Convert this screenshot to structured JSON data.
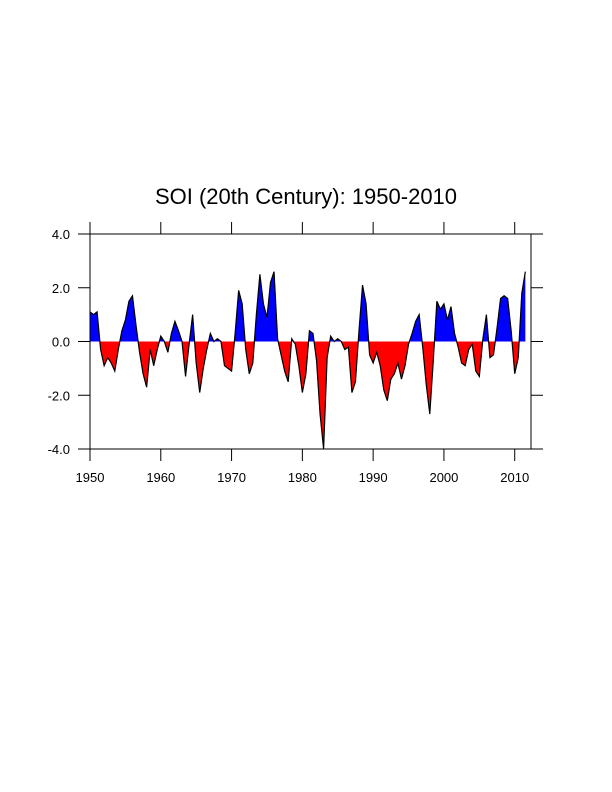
{
  "chart_data": {
    "type": "area",
    "title": "SOI (20th Century): 1950-2010",
    "x": [
      1950,
      1950.5,
      1951,
      1951.5,
      1952,
      1952.5,
      1953,
      1953.5,
      1954,
      1954.5,
      1955,
      1955.5,
      1956,
      1956.5,
      1957,
      1957.5,
      1958,
      1958.5,
      1959,
      1959.5,
      1960,
      1960.5,
      1961,
      1961.5,
      1962,
      1962.5,
      1963,
      1963.5,
      1964,
      1964.5,
      1965,
      1965.5,
      1966,
      1966.5,
      1967,
      1967.5,
      1968,
      1968.5,
      1969,
      1969.5,
      1970,
      1970.5,
      1971,
      1971.5,
      1972,
      1972.5,
      1973,
      1973.5,
      1974,
      1974.5,
      1975,
      1975.5,
      1976,
      1976.5,
      1977,
      1977.5,
      1978,
      1978.5,
      1979,
      1979.5,
      1980,
      1980.5,
      1981,
      1981.5,
      1982,
      1982.5,
      1983,
      1983.5,
      1984,
      1984.5,
      1985,
      1985.5,
      1986,
      1986.5,
      1987,
      1987.5,
      1988,
      1988.5,
      1989,
      1989.5,
      1990,
      1990.5,
      1991,
      1991.5,
      1992,
      1992.5,
      1993,
      1993.5,
      1994,
      1994.5,
      1995,
      1995.5,
      1996,
      1996.5,
      1997,
      1997.5,
      1998,
      1998.5,
      1999,
      1999.5,
      2000,
      2000.5,
      2001,
      2001.5,
      2002,
      2002.5,
      2003,
      2003.5,
      2004,
      2004.5,
      2005,
      2005.5,
      2006,
      2006.5,
      2007,
      2007.5,
      2008,
      2008.5,
      2009,
      2009.5,
      2010,
      2010.5,
      2011,
      2011.5
    ],
    "values": [
      1.1,
      1.0,
      1.1,
      -0.3,
      -0.9,
      -0.6,
      -0.8,
      -1.1,
      -0.3,
      0.4,
      0.8,
      1.5,
      1.7,
      0.6,
      -0.4,
      -1.2,
      -1.7,
      -0.3,
      -0.9,
      -0.3,
      0.2,
      0.0,
      -0.4,
      0.3,
      0.75,
      0.4,
      0.0,
      -1.3,
      -0.1,
      1.0,
      -0.8,
      -1.9,
      -1.0,
      -0.3,
      0.3,
      0.0,
      0.1,
      0.0,
      -0.9,
      -1.0,
      -1.1,
      0.3,
      1.9,
      1.4,
      -0.3,
      -1.2,
      -0.8,
      1.0,
      2.5,
      1.4,
      0.9,
      2.2,
      2.6,
      0.1,
      -0.5,
      -1.1,
      -1.5,
      0.1,
      -0.1,
      -0.9,
      -1.9,
      -1.2,
      0.4,
      0.3,
      -0.7,
      -2.7,
      -4.0,
      -0.6,
      0.2,
      0.0,
      0.1,
      0.0,
      -0.3,
      -0.2,
      -1.9,
      -1.5,
      0.4,
      2.1,
      1.4,
      -0.5,
      -0.8,
      -0.4,
      -0.9,
      -1.8,
      -2.2,
      -1.4,
      -1.2,
      -0.8,
      -1.4,
      -0.9,
      -0.1,
      0.3,
      0.75,
      1.0,
      -0.2,
      -1.6,
      -2.7,
      -0.7,
      1.5,
      1.2,
      1.4,
      0.8,
      1.3,
      0.3,
      -0.2,
      -0.8,
      -0.9,
      -0.3,
      -0.1,
      -1.1,
      -1.3,
      0.1,
      1.0,
      -0.6,
      -0.5,
      0.5,
      1.6,
      1.7,
      1.6,
      0.4,
      -1.2,
      -0.6,
      1.8,
      2.6
    ],
    "above_color": "#0000ff",
    "below_color": "#ff0000",
    "line_color": "#000000",
    "xlim": [
      1950,
      2012.3
    ],
    "xticks": [
      1950,
      1960,
      1970,
      1980,
      1990,
      2000,
      2010
    ],
    "ylim": [
      -4,
      4
    ],
    "yticks": [
      {
        "value": -4,
        "label": "-4.0"
      },
      {
        "value": -2,
        "label": "-2.0"
      },
      {
        "value": 0,
        "label": "0.0"
      },
      {
        "value": 2,
        "label": "2.0"
      },
      {
        "value": 4,
        "label": "4.0"
      }
    ]
  }
}
